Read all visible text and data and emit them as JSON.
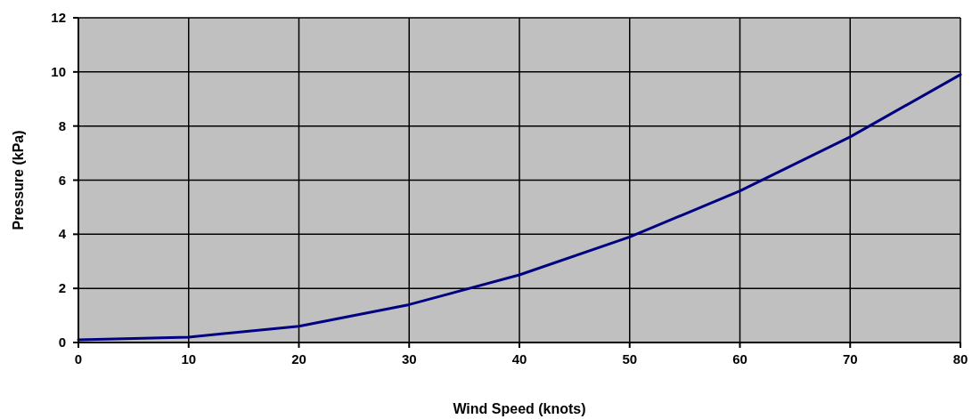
{
  "chart_data": {
    "type": "line",
    "xlabel": "Wind Speed (knots)",
    "ylabel": "Pressure (kPa)",
    "x": [
      0,
      10,
      20,
      30,
      40,
      50,
      60,
      70,
      80
    ],
    "series": [
      {
        "color": "#000080",
        "values": [
          0.1,
          0.2,
          0.6,
          1.4,
          2.5,
          3.9,
          5.6,
          7.6,
          9.9
        ]
      }
    ],
    "xlim": [
      0,
      80
    ],
    "xticks": [
      0,
      10,
      20,
      30,
      40,
      50,
      60,
      70,
      80
    ],
    "ylim": [
      0,
      12
    ],
    "yticks": [
      0,
      2,
      4,
      6,
      8,
      10,
      12
    ],
    "grid": true,
    "marker": "none",
    "line_style": "solid"
  }
}
